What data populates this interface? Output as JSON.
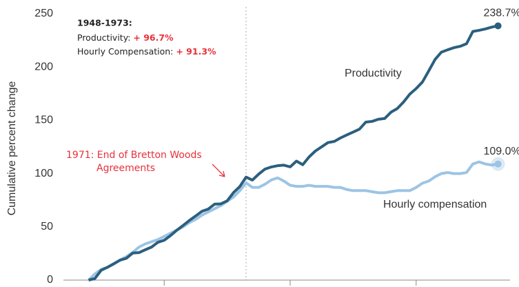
{
  "chart_data": {
    "type": "line",
    "y_label": "Cumulative percent change",
    "x": [
      1948,
      1949,
      1950,
      1951,
      1952,
      1953,
      1954,
      1955,
      1956,
      1957,
      1958,
      1959,
      1960,
      1961,
      1962,
      1963,
      1964,
      1965,
      1966,
      1967,
      1968,
      1969,
      1970,
      1971,
      1972,
      1973,
      1974,
      1975,
      1976,
      1977,
      1978,
      1979,
      1980,
      1981,
      1982,
      1983,
      1984,
      1985,
      1986,
      1987,
      1988,
      1989,
      1990,
      1991,
      1992,
      1993,
      1994,
      1995,
      1996,
      1997,
      1998,
      1999,
      2000,
      2001,
      2002,
      2003,
      2004,
      2005,
      2006,
      2007,
      2008,
      2009,
      2010,
      2011,
      2012,
      2013
    ],
    "series": [
      {
        "name": "Productivity",
        "color": "#2b5f7e",
        "values": [
          0,
          1.5,
          9.3,
          12.1,
          15.4,
          18.7,
          20.5,
          25.4,
          25.8,
          28.5,
          31.0,
          35.5,
          37.4,
          41.8,
          46.8,
          51.3,
          56.0,
          60.2,
          64.6,
          66.7,
          71.3,
          71.6,
          74.4,
          82.1,
          87.8,
          96.7,
          93.9,
          99.5,
          104.2,
          106.2,
          107.4,
          107.9,
          106.3,
          111.7,
          108.3,
          115.6,
          121.2,
          125.1,
          129.1,
          130.2,
          133.5,
          136.3,
          139.0,
          141.7,
          148.3,
          149.0,
          151.0,
          151.7,
          157.6,
          161.0,
          167.2,
          174.6,
          179.8,
          186.0,
          196.4,
          207.1,
          214.0,
          216.2,
          218.2,
          219.5,
          221.9,
          233.4,
          234.5,
          235.8,
          237.5,
          238.7
        ],
        "value_labels": [
          null,
          null,
          null,
          null,
          null,
          null,
          null,
          null,
          null,
          null,
          null,
          null,
          null,
          null,
          null,
          null,
          null,
          null,
          null,
          null,
          null,
          null,
          null,
          null,
          null,
          null,
          null,
          null,
          null,
          null,
          null,
          null,
          null,
          null,
          null,
          null,
          null,
          null,
          null,
          null,
          null,
          null,
          null,
          null,
          null,
          null,
          null,
          null,
          null,
          null,
          null,
          null,
          null,
          null,
          null,
          null,
          null,
          null,
          null,
          null,
          null,
          null,
          null,
          null,
          null,
          "238.7%"
        ]
      },
      {
        "name": "Hourly compensation",
        "color": "#9cc4e4",
        "values": [
          0,
          5.8,
          10,
          12,
          15,
          19,
          22,
          26,
          31,
          34,
          36,
          38,
          41,
          44,
          47,
          50,
          54,
          57,
          61,
          64,
          67,
          70,
          74,
          78,
          84,
          91.3,
          87,
          87,
          90,
          94,
          96,
          93,
          89,
          88,
          88,
          89,
          88,
          88,
          88,
          87,
          87,
          85,
          84,
          84,
          84,
          83,
          82,
          82,
          83,
          84,
          84,
          84,
          87,
          91,
          93,
          97,
          100,
          101,
          100,
          100,
          101,
          109,
          111,
          109,
          108,
          109.0
        ],
        "value_labels": [
          null,
          null,
          null,
          null,
          null,
          null,
          null,
          null,
          null,
          null,
          null,
          null,
          null,
          null,
          null,
          null,
          null,
          null,
          null,
          null,
          null,
          null,
          null,
          null,
          null,
          null,
          null,
          null,
          null,
          null,
          null,
          null,
          null,
          null,
          null,
          null,
          null,
          null,
          null,
          null,
          null,
          null,
          null,
          null,
          null,
          null,
          null,
          null,
          null,
          null,
          null,
          null,
          null,
          null,
          null,
          null,
          null,
          null,
          null,
          null,
          null,
          null,
          null,
          null,
          null,
          "109.0%"
        ]
      }
    ],
    "xlim": [
      1944,
      2016
    ],
    "xticks": [
      1960,
      1980,
      2000
    ],
    "ylim": [
      0,
      250
    ],
    "yticks": [
      0,
      50,
      100,
      150,
      200,
      250
    ],
    "grid": false,
    "vline": 1973,
    "summary": {
      "title": "1948-1973:",
      "rows": [
        {
          "label": "Productivity: ",
          "value": "+ 96.7%"
        },
        {
          "label": "Hourly Compensation: ",
          "value": "+ 91.3%"
        }
      ]
    },
    "event_note": [
      "1971: End of Bretton  Woods",
      "Agreements"
    ]
  }
}
